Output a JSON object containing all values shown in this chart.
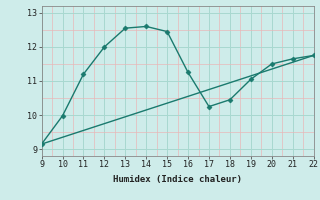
{
  "xlabel": "Humidex (Indice chaleur)",
  "bg_color": "#ceecea",
  "line_color": "#1a7a6e",
  "xlim": [
    9,
    22
  ],
  "ylim": [
    8.8,
    13.2
  ],
  "xticks": [
    9,
    10,
    11,
    12,
    13,
    14,
    15,
    16,
    17,
    18,
    19,
    20,
    21,
    22
  ],
  "yticks": [
    9,
    10,
    11,
    12,
    13
  ],
  "curve1_x": [
    9,
    10,
    11,
    12,
    13,
    14,
    15,
    16,
    17,
    18,
    19,
    20,
    21,
    22
  ],
  "curve1_y": [
    9.15,
    9.98,
    11.2,
    12.0,
    12.55,
    12.6,
    12.45,
    11.25,
    10.25,
    10.45,
    11.05,
    11.5,
    11.65,
    11.75
  ],
  "curve2_x": [
    9,
    22
  ],
  "curve2_y": [
    9.15,
    11.75
  ],
  "marker_size": 2.5,
  "line_width": 1.0,
  "major_grid_color": "#a8d8d0",
  "minor_grid_color": "#e8b8b8"
}
